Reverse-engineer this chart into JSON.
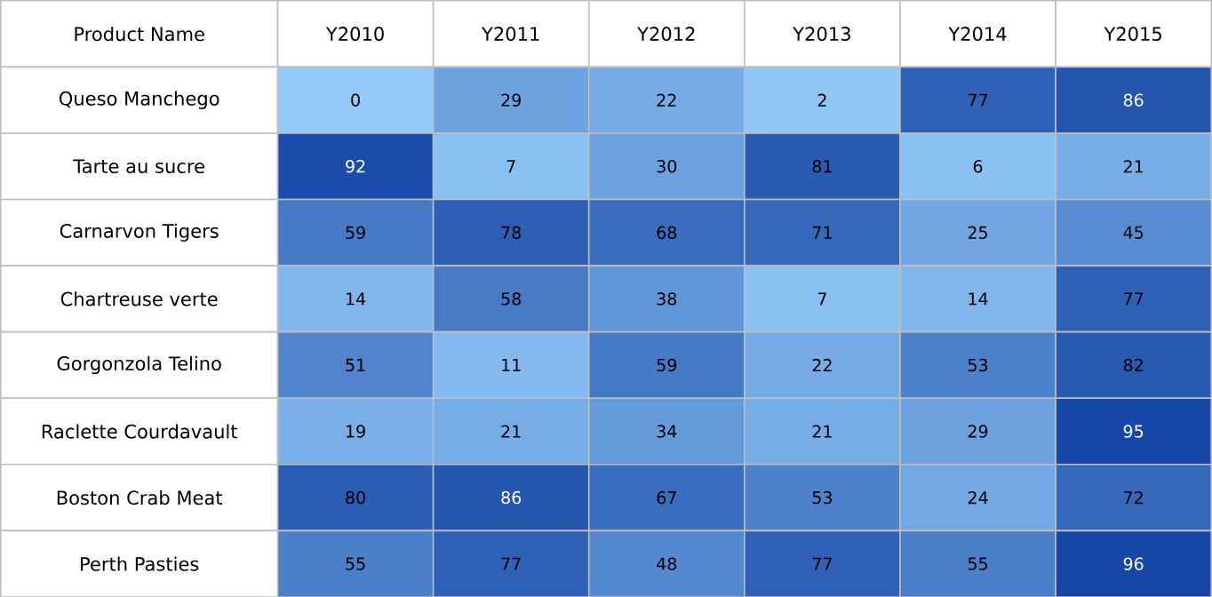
{
  "chart_data": {
    "type": "heatmap",
    "ylabel": "Product Name",
    "categories": [
      "Y2010",
      "Y2011",
      "Y2012",
      "Y2013",
      "Y2014",
      "Y2015"
    ],
    "y_categories": [
      "Queso Manchego",
      "Tarte au sucre",
      "Carnarvon Tigers",
      "Chartreuse verte",
      "Gorgonzola Telino",
      "Raclette Courdavault",
      "Boston Crab Meat",
      "Perth Pasties"
    ],
    "cells": [
      [
        0,
        29,
        22,
        2,
        77,
        86
      ],
      [
        92,
        7,
        30,
        81,
        6,
        21
      ],
      [
        59,
        78,
        68,
        71,
        25,
        45
      ],
      [
        14,
        58,
        38,
        7,
        14,
        77
      ],
      [
        51,
        11,
        59,
        22,
        53,
        82
      ],
      [
        19,
        21,
        34,
        21,
        29,
        95
      ],
      [
        80,
        86,
        67,
        53,
        24,
        72
      ],
      [
        55,
        77,
        48,
        77,
        55,
        96
      ]
    ],
    "colors": [
      "#92c9f8",
      "#1747a6"
    ],
    "data_labels": true
  }
}
